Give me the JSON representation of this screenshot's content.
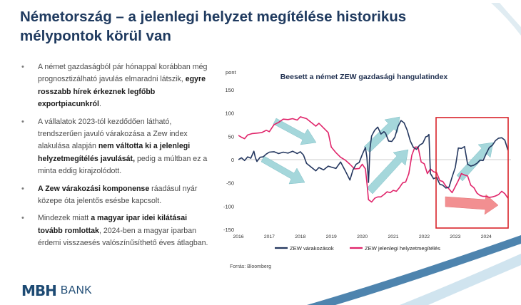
{
  "title": "Németország – a jelenlegi helyzet megítélése historikus mélypontok körül van",
  "bullets": [
    {
      "parts": [
        {
          "t": "A német gazdaságból pár hónappal korábban még prognosztizálható javulás elmaradni látszik, ",
          "b": false
        },
        {
          "t": "egyre rosszabb hírek érkeznek legfőbb exportpiacunkról",
          "b": true
        },
        {
          "t": ".",
          "b": false
        }
      ]
    },
    {
      "parts": [
        {
          "t": "A vállalatok 2023-tól kezdődően látható, trendszerűen javuló várakozása a Zew index alakulása alapján ",
          "b": false
        },
        {
          "t": "nem váltotta ki a jelenlegi helyzetmegítélés javulását,",
          "b": true
        },
        {
          "t": " pedig a múltban ez a minta eddig kirajzolódott.",
          "b": false
        }
      ]
    },
    {
      "parts": [
        {
          "t": "A Zew várakozási komponense",
          "b": true
        },
        {
          "t": " ráadásul nyár közepe óta jelentős esésbe kapcsolt.",
          "b": false
        }
      ]
    },
    {
      "parts": [
        {
          "t": "Mindezek miatt ",
          "b": false
        },
        {
          "t": "a magyar ipar idei kilátásai tovább romlottak",
          "b": true
        },
        {
          "t": ", 2024-ben a magyar iparban érdemi visszaesés valószínűsíthető éves átlagban.",
          "b": false
        }
      ]
    }
  ],
  "source": "Forrás: Bloomberg",
  "logo": {
    "mark": "MBH",
    "bank": "BANK"
  },
  "colors": {
    "expectations": "#24375f",
    "current": "#e0246a",
    "arrow_teal": "#9cd3d8",
    "arrow_red": "#f28a8c",
    "box": "#d8232a",
    "title": "#1f3a5f"
  },
  "chart_data": {
    "type": "line",
    "title": "Beesett a német ZEW gazdasági hangulatindex",
    "ylabel": "pont",
    "xlabel": "",
    "ylim": [
      -150,
      150
    ],
    "yticks": [
      -150,
      -100,
      -50,
      0,
      50,
      100,
      150
    ],
    "xlim": [
      2016,
      2024.8
    ],
    "xticks": [
      "2016",
      "2017",
      "2018",
      "2019",
      "2020",
      "2021",
      "2022",
      "2023",
      "2024"
    ],
    "grid": false,
    "legend": "bottom",
    "series": [
      {
        "name": "ZEW várakozások",
        "x": [
          2016.0,
          2016.1,
          2016.2,
          2016.3,
          2016.4,
          2016.5,
          2016.55,
          2016.6,
          2016.7,
          2016.8,
          2016.9,
          2017.0,
          2017.15,
          2017.3,
          2017.45,
          2017.6,
          2017.75,
          2017.9,
          2018.0,
          2018.1,
          2018.2,
          2018.35,
          2018.5,
          2018.6,
          2018.75,
          2018.9,
          2019.0,
          2019.15,
          2019.3,
          2019.45,
          2019.6,
          2019.7,
          2019.8,
          2019.9,
          2020.0,
          2020.1,
          2020.15,
          2020.2,
          2020.25,
          2020.3,
          2020.4,
          2020.5,
          2020.6,
          2020.7,
          2020.75,
          2020.85,
          2020.95,
          2021.05,
          2021.15,
          2021.25,
          2021.35,
          2021.45,
          2021.55,
          2021.65,
          2021.75,
          2021.85,
          2021.95,
          2022.05,
          2022.1,
          2022.15,
          2022.2,
          2022.3,
          2022.4,
          2022.5,
          2022.6,
          2022.7,
          2022.8,
          2022.9,
          2023.0,
          2023.1,
          2023.2,
          2023.3,
          2023.4,
          2023.5,
          2023.6,
          2023.7,
          2023.8,
          2023.9,
          2024.0,
          2024.1,
          2024.2,
          2024.3,
          2024.4,
          2024.5,
          2024.6,
          2024.7
        ],
        "y": [
          0,
          4,
          -2,
          6,
          3,
          18,
          4,
          -4,
          5,
          6,
          12,
          16,
          17,
          13,
          16,
          14,
          18,
          13,
          17,
          10,
          -8,
          -16,
          -24,
          -17,
          -22,
          -14,
          -16,
          -19,
          -5,
          -24,
          -44,
          -22,
          -10,
          -6,
          11,
          26,
          5,
          -49,
          25,
          51,
          63,
          70,
          55,
          60,
          57,
          40,
          39,
          48,
          71,
          84,
          79,
          63,
          40,
          26,
          22,
          31,
          35,
          49,
          50,
          54,
          -30,
          -41,
          -38,
          -53,
          -55,
          -61,
          -59,
          -37,
          -17,
          25,
          24,
          28,
          -10,
          -14,
          -12,
          -8,
          -1,
          -2,
          13,
          26,
          31,
          41,
          46,
          47,
          42,
          20
        ]
      },
      {
        "name": "ZEW jelenlegi helyzetmegítélés",
        "x": [
          2016.0,
          2016.1,
          2016.2,
          2016.3,
          2016.45,
          2016.6,
          2016.75,
          2016.9,
          2017.0,
          2017.15,
          2017.3,
          2017.45,
          2017.6,
          2017.75,
          2017.9,
          2018.0,
          2018.1,
          2018.2,
          2018.35,
          2018.5,
          2018.6,
          2018.75,
          2018.9,
          2019.0,
          2019.15,
          2019.3,
          2019.45,
          2019.6,
          2019.75,
          2019.9,
          2020.0,
          2020.1,
          2020.15,
          2020.2,
          2020.3,
          2020.4,
          2020.5,
          2020.6,
          2020.7,
          2020.8,
          2020.9,
          2021.0,
          2021.1,
          2021.2,
          2021.3,
          2021.4,
          2021.5,
          2021.6,
          2021.7,
          2021.8,
          2021.9,
          2022.0,
          2022.1,
          2022.2,
          2022.3,
          2022.4,
          2022.5,
          2022.6,
          2022.7,
          2022.8,
          2022.9,
          2023.0,
          2023.1,
          2023.2,
          2023.3,
          2023.4,
          2023.5,
          2023.6,
          2023.7,
          2023.8,
          2023.9,
          2024.0,
          2024.1,
          2024.2,
          2024.3,
          2024.4,
          2024.5,
          2024.6,
          2024.7
        ],
        "y": [
          52,
          48,
          45,
          53,
          56,
          57,
          58,
          63,
          60,
          75,
          80,
          87,
          86,
          88,
          85,
          92,
          90,
          88,
          80,
          72,
          78,
          68,
          58,
          27,
          15,
          5,
          -1,
          -10,
          -20,
          -19,
          -10,
          -20,
          -50,
          -86,
          -91,
          -83,
          -80,
          -80,
          -75,
          -69,
          -71,
          -66,
          -68,
          -60,
          -50,
          -48,
          -30,
          10,
          27,
          27,
          -5,
          -9,
          -30,
          -20,
          -26,
          -28,
          -45,
          -47,
          -57,
          -63,
          -71,
          -58,
          -45,
          -30,
          -33,
          -35,
          -55,
          -60,
          -72,
          -77,
          -79,
          -79,
          -81,
          -80,
          -78,
          -75,
          -68,
          -73,
          -83
        ]
      }
    ]
  }
}
